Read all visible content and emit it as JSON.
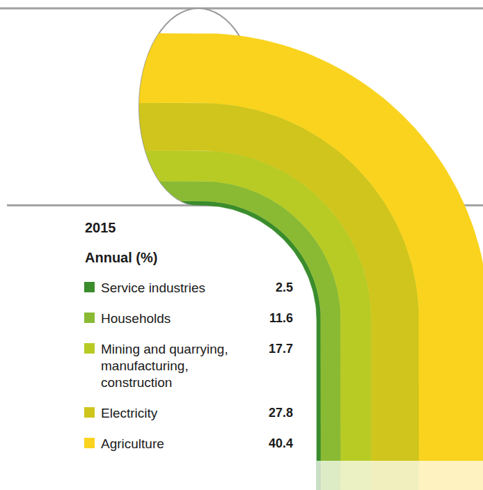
{
  "chart_data": {
    "type": "bar",
    "title": "2015",
    "subtitle": "Annual (%)",
    "stacked": true,
    "legend": "bottom-left",
    "tick_labels": false,
    "series": [
      {
        "name": "Service industries",
        "color": "#3a8c2c",
        "values": [
          2.5
        ]
      },
      {
        "name": "Households",
        "color": "#8aba34",
        "values": [
          11.6
        ]
      },
      {
        "name": "Mining and quarrying, manufacturing, construction",
        "color": "#b8cb24",
        "values": [
          17.7
        ]
      },
      {
        "name": "Electricity",
        "color": "#cfc51c",
        "values": [
          27.8
        ]
      },
      {
        "name": "Agriculture",
        "color": "#f9d31d",
        "values": [
          40.4
        ]
      }
    ]
  }
}
